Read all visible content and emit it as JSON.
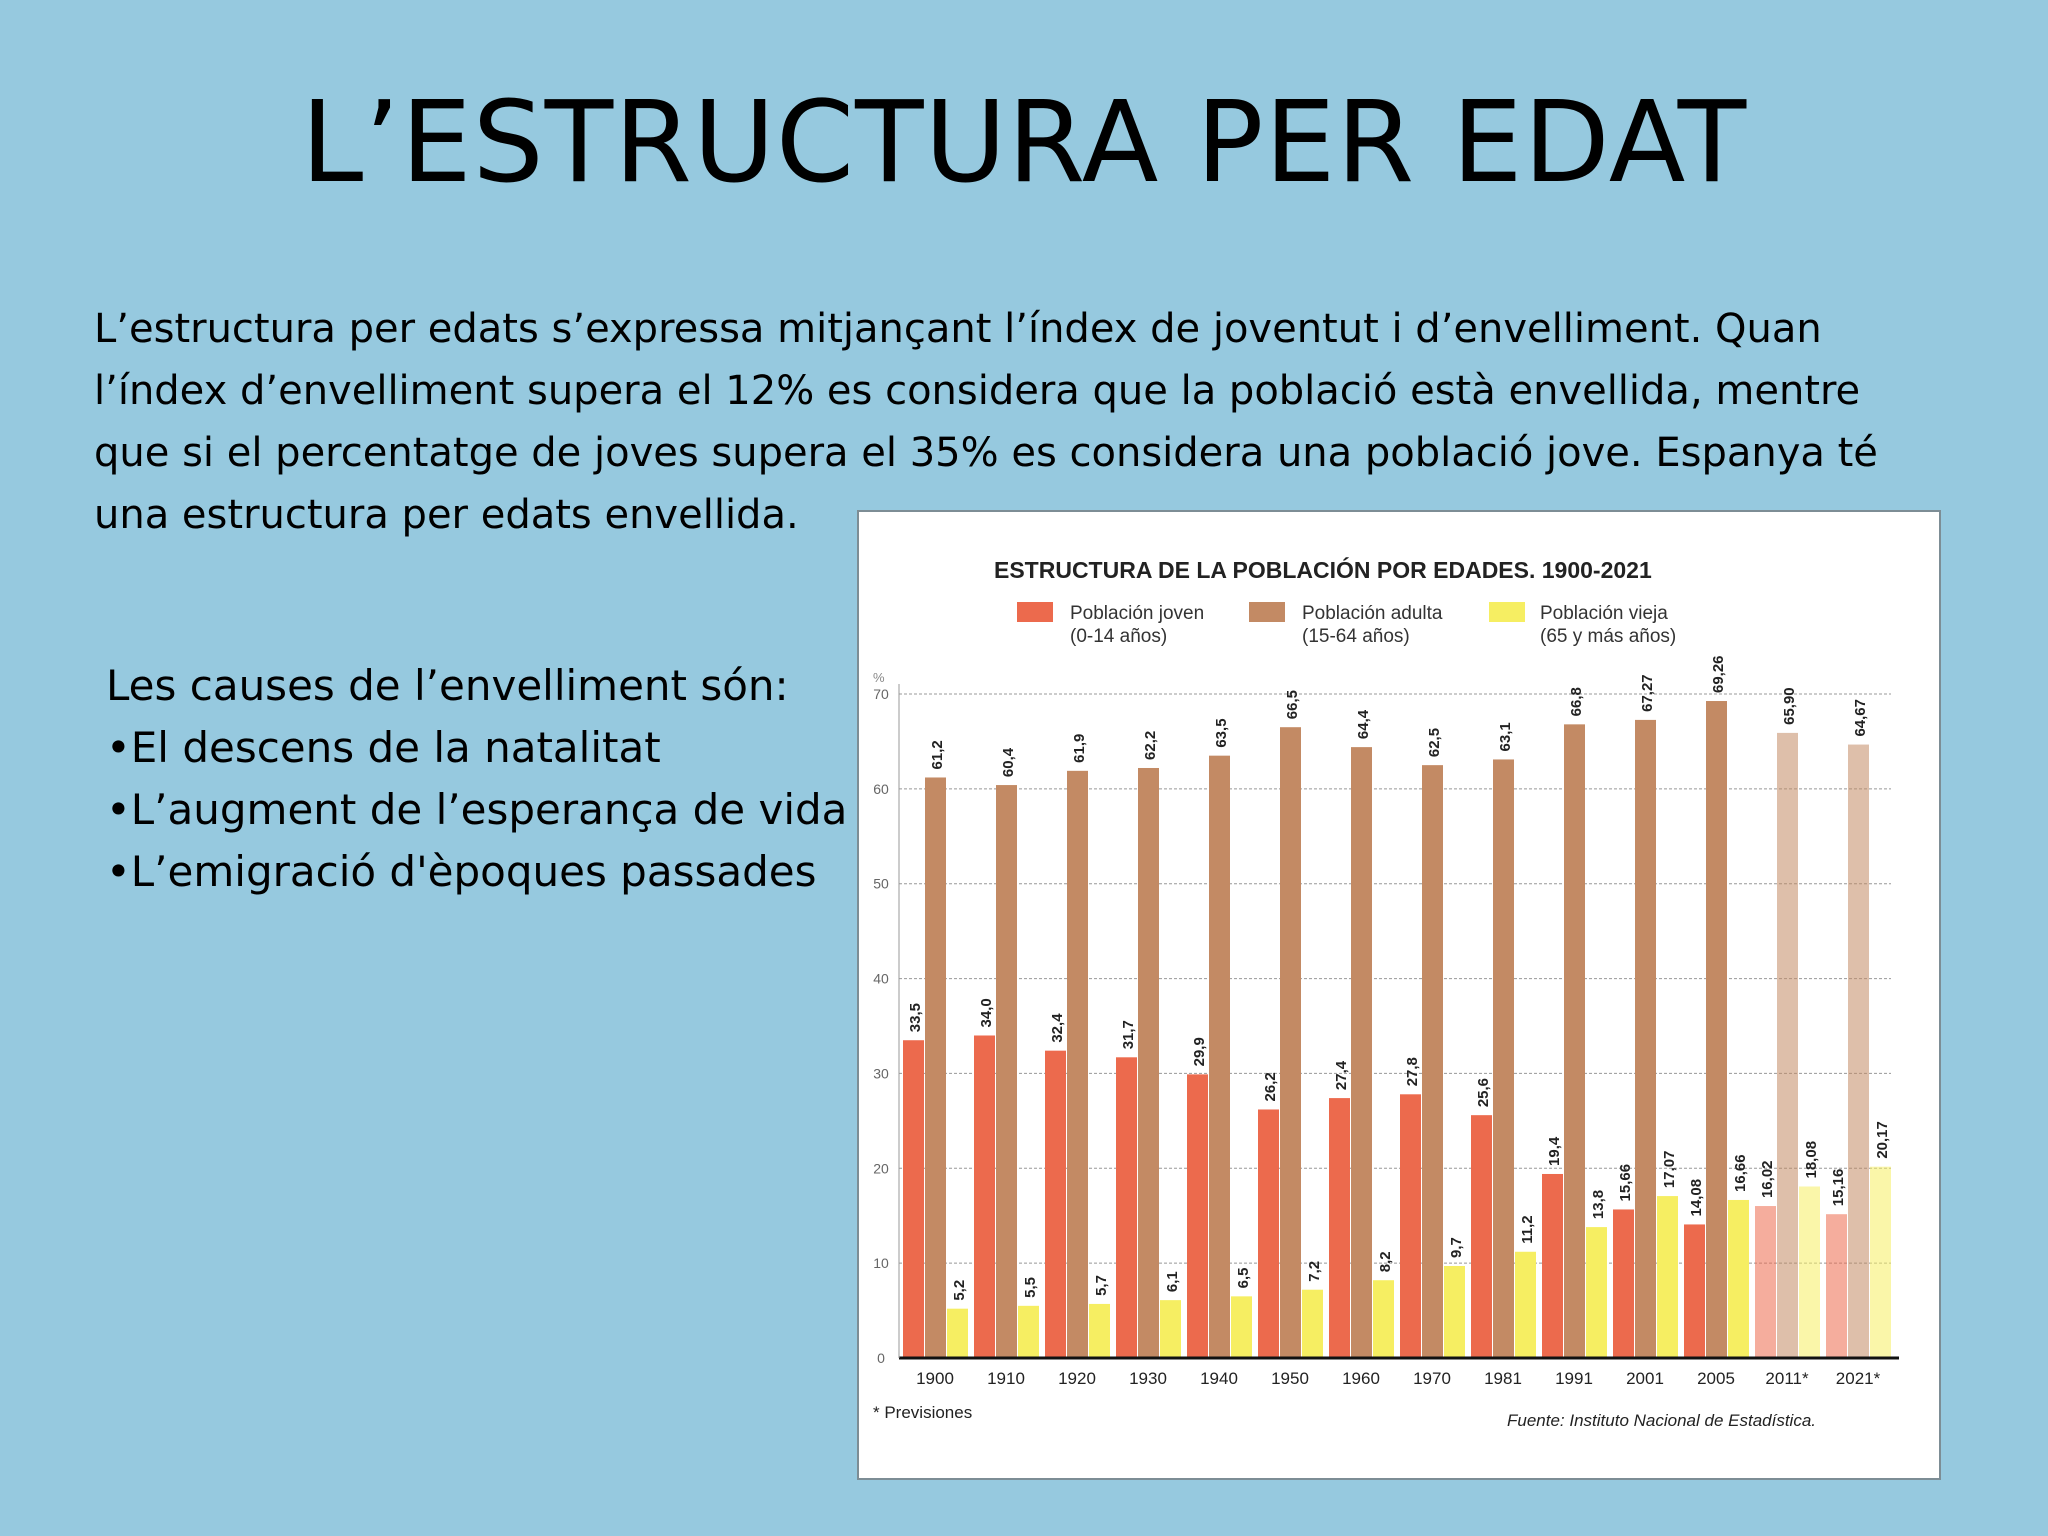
{
  "slide": {
    "title": "L’ESTRUCTURA PER EDAT",
    "intro_lines": [
      "L’estructura per edats s’expressa mitjançant l’índex de joventut i d’envelliment. Quan",
      "l’índex d’envelliment supera el 12% es considera que la població està envellida, mentre",
      "que si el percentatge de joves supera el 35% es considera una població jove. Espanya té",
      "una estructura per edats envellida."
    ],
    "causes_heading": "Les causes de l’envelliment són:",
    "causes": [
      "•El descens de la natalitat",
      "•L’augment de l’esperança de vida",
      "•L’emigració d'èpoques passades"
    ]
  },
  "chart_data": {
    "type": "bar",
    "title": "ESTRUCTURA DE LA POBLACIÓN POR EDADES. 1900-2021",
    "categories": [
      "1900",
      "1910",
      "1920",
      "1930",
      "1940",
      "1950",
      "1960",
      "1970",
      "1981",
      "1991",
      "2001",
      "2005",
      "2011*",
      "2021*"
    ],
    "projected_categories": [
      "2011*",
      "2021*"
    ],
    "series": [
      {
        "name": "Población joven",
        "sub": "(0-14 años)",
        "color": "#ec6a4d",
        "values": [
          33.5,
          34.0,
          32.4,
          31.7,
          29.9,
          26.2,
          27.4,
          27.8,
          25.6,
          19.4,
          15.66,
          14.08,
          16.02,
          15.16
        ],
        "labels": [
          "33,5",
          "34,0",
          "32,4",
          "31,7",
          "29,9",
          "26,2",
          "27,4",
          "27,8",
          "25,6",
          "19,4",
          "15,66",
          "14,08",
          "16,02",
          "15,16"
        ]
      },
      {
        "name": "Población adulta",
        "sub": "(15-64 años)",
        "color": "#c38a64",
        "values": [
          61.2,
          60.4,
          61.9,
          62.2,
          63.5,
          66.5,
          64.4,
          62.5,
          63.1,
          66.8,
          67.27,
          69.26,
          65.9,
          64.67
        ],
        "labels": [
          "61,2",
          "60,4",
          "61,9",
          "62,2",
          "63,5",
          "66,5",
          "64,4",
          "62,5",
          "63,1",
          "66,8",
          "67,27",
          "69,26",
          "65,90",
          "64,67"
        ]
      },
      {
        "name": "Población vieja",
        "sub": "(65 y más años)",
        "color": "#f6ee62",
        "values": [
          5.2,
          5.5,
          5.7,
          6.1,
          6.5,
          7.2,
          8.2,
          9.7,
          11.2,
          13.8,
          17.07,
          16.66,
          18.08,
          20.17
        ],
        "labels": [
          "5,2",
          "5,5",
          "5,7",
          "6,1",
          "6,5",
          "7,2",
          "8,2",
          "9,7",
          "11,2",
          "13,8",
          "17,07",
          "16,66",
          "18,08",
          "20,17"
        ]
      }
    ],
    "y_ticks": [
      "0",
      "10",
      "20",
      "30",
      "40",
      "50",
      "60",
      "70"
    ],
    "y_tick_values": [
      0,
      10,
      20,
      30,
      40,
      50,
      60,
      70
    ],
    "y_unit": "%",
    "ylim": [
      0,
      70
    ],
    "grid": true,
    "legend": "top",
    "footnote": "* Previsiones",
    "source": "Fuente: Instituto Nacional de Estadística."
  }
}
